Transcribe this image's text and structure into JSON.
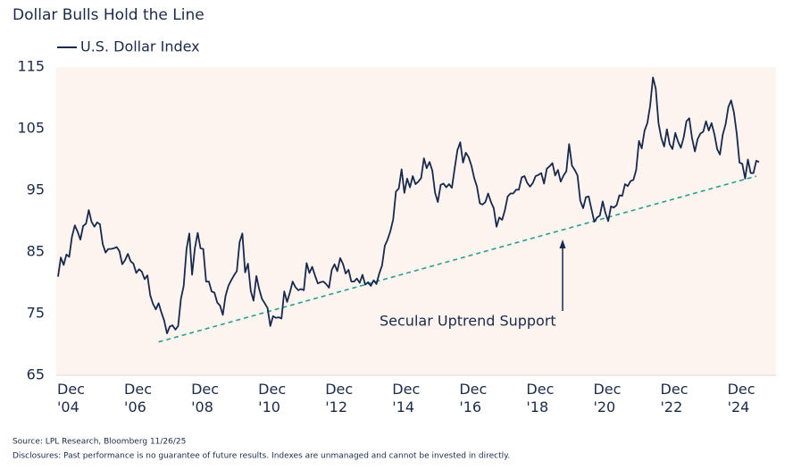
{
  "chart_data": {
    "type": "line",
    "title": "Dollar Bulls Hold the Line",
    "x": [
      "2004-12",
      "2005-01",
      "2005-02",
      "2005-03",
      "2005-04",
      "2005-05",
      "2005-06",
      "2005-07",
      "2005-08",
      "2005-09",
      "2005-10",
      "2005-11",
      "2005-12",
      "2006-01",
      "2006-02",
      "2006-03",
      "2006-04",
      "2006-05",
      "2006-06",
      "2006-07",
      "2006-08",
      "2006-09",
      "2006-10",
      "2006-11",
      "2006-12",
      "2007-01",
      "2007-02",
      "2007-03",
      "2007-04",
      "2007-05",
      "2007-06",
      "2007-07",
      "2007-08",
      "2007-09",
      "2007-10",
      "2007-11",
      "2007-12",
      "2008-01",
      "2008-02",
      "2008-03",
      "2008-04",
      "2008-05",
      "2008-06",
      "2008-07",
      "2008-08",
      "2008-09",
      "2008-10",
      "2008-11",
      "2008-12",
      "2009-01",
      "2009-02",
      "2009-03",
      "2009-04",
      "2009-05",
      "2009-06",
      "2009-07",
      "2009-08",
      "2009-09",
      "2009-10",
      "2009-11",
      "2009-12",
      "2010-01",
      "2010-02",
      "2010-03",
      "2010-04",
      "2010-05",
      "2010-06",
      "2010-07",
      "2010-08",
      "2010-09",
      "2010-10",
      "2010-11",
      "2010-12",
      "2011-01",
      "2011-02",
      "2011-03",
      "2011-04",
      "2011-05",
      "2011-06",
      "2011-07",
      "2011-08",
      "2011-09",
      "2011-10",
      "2011-11",
      "2011-12",
      "2012-01",
      "2012-02",
      "2012-03",
      "2012-04",
      "2012-05",
      "2012-06",
      "2012-07",
      "2012-08",
      "2012-09",
      "2012-10",
      "2012-11",
      "2012-12",
      "2013-01",
      "2013-02",
      "2013-03",
      "2013-04",
      "2013-05",
      "2013-06",
      "2013-07",
      "2013-08",
      "2013-09",
      "2013-10",
      "2013-11",
      "2013-12",
      "2014-01",
      "2014-02",
      "2014-03",
      "2014-04",
      "2014-05",
      "2014-06",
      "2014-07",
      "2014-08",
      "2014-09",
      "2014-10",
      "2014-11",
      "2014-12",
      "2015-01",
      "2015-02",
      "2015-03",
      "2015-04",
      "2015-05",
      "2015-06",
      "2015-07",
      "2015-08",
      "2015-09",
      "2015-10",
      "2015-11",
      "2015-12",
      "2016-01",
      "2016-02",
      "2016-03",
      "2016-04",
      "2016-05",
      "2016-06",
      "2016-07",
      "2016-08",
      "2016-09",
      "2016-10",
      "2016-11",
      "2016-12",
      "2017-01",
      "2017-02",
      "2017-03",
      "2017-04",
      "2017-05",
      "2017-06",
      "2017-07",
      "2017-08",
      "2017-09",
      "2017-10",
      "2017-11",
      "2017-12",
      "2018-01",
      "2018-02",
      "2018-03",
      "2018-04",
      "2018-05",
      "2018-06",
      "2018-07",
      "2018-08",
      "2018-09",
      "2018-10",
      "2018-11",
      "2018-12",
      "2019-01",
      "2019-02",
      "2019-03",
      "2019-04",
      "2019-05",
      "2019-06",
      "2019-07",
      "2019-08",
      "2019-09",
      "2019-10",
      "2019-11",
      "2019-12",
      "2020-01",
      "2020-02",
      "2020-03",
      "2020-04",
      "2020-05",
      "2020-06",
      "2020-07",
      "2020-08",
      "2020-09",
      "2020-10",
      "2020-11",
      "2020-12",
      "2021-01",
      "2021-02",
      "2021-03",
      "2021-04",
      "2021-05",
      "2021-06",
      "2021-07",
      "2021-08",
      "2021-09",
      "2021-10",
      "2021-11",
      "2021-12",
      "2022-01",
      "2022-02",
      "2022-03",
      "2022-04",
      "2022-05",
      "2022-06",
      "2022-07",
      "2022-08",
      "2022-09",
      "2022-10",
      "2022-11",
      "2022-12",
      "2023-01",
      "2023-02",
      "2023-03",
      "2023-04",
      "2023-05",
      "2023-06",
      "2023-07",
      "2023-08",
      "2023-09",
      "2023-10",
      "2023-11",
      "2023-12",
      "2024-01",
      "2024-02",
      "2024-03",
      "2024-04",
      "2024-05",
      "2024-06",
      "2024-07",
      "2024-08",
      "2024-09",
      "2024-10",
      "2024-11",
      "2024-12",
      "2025-01",
      "2025-02",
      "2025-03",
      "2025-04",
      "2025-05",
      "2025-06",
      "2025-07",
      "2025-08",
      "2025-09",
      "2025-10",
      "2025-11"
    ],
    "series": [
      {
        "name": "U.S. Dollar Index",
        "color": "#17294d",
        "values": [
          81,
          84.1,
          82.9,
          84.6,
          84.2,
          87.5,
          89.3,
          88.3,
          87,
          89.2,
          89.6,
          91.8,
          89.9,
          89.1,
          89.8,
          89.5,
          86.3,
          84.9,
          85.5,
          85.5,
          85.6,
          85.8,
          85.1,
          83,
          83.7,
          84.7,
          83.5,
          83.1,
          81.6,
          82.2,
          81.8,
          80.6,
          81.2,
          78,
          76.6,
          75.7,
          76.7,
          75.2,
          73.9,
          71.8,
          72.9,
          73.1,
          72.4,
          73,
          77.4,
          79.5,
          85.5,
          88,
          81.3,
          85.6,
          88.1,
          85.6,
          85.5,
          80.2,
          80.2,
          78.6,
          78.4,
          76.8,
          76.3,
          74.8,
          77.9,
          79.5,
          80.4,
          81.2,
          81.9,
          86.6,
          88,
          81.7,
          83.1,
          78.7,
          77.1,
          81.1,
          79,
          77.4,
          76.7,
          75.9,
          73,
          74.6,
          74.3,
          74.4,
          74.2,
          78.6,
          76.9,
          78.4,
          80.2,
          79.3,
          78.8,
          79,
          78.8,
          83.2,
          81.6,
          82.6,
          81.2,
          79.9,
          80.1,
          80.2,
          79.8,
          79.2,
          82.1,
          83,
          81.9,
          84,
          83.1,
          81.5,
          82.1,
          80.2,
          80.2,
          80.7,
          80,
          81.3,
          79.7,
          80.1,
          79.5,
          80.4,
          79.8,
          81.5,
          82.8,
          86,
          87,
          88.4,
          90.3,
          94.8,
          95.3,
          98.4,
          94.6,
          96.9,
          95.5,
          97.3,
          96,
          96.4,
          97,
          100.2,
          98.6,
          99.6,
          98.2,
          94.6,
          93.1,
          95.9,
          96.1,
          95.5,
          96,
          95.4,
          98.5,
          101.5,
          102.8,
          99.5,
          101.1,
          100.4,
          99,
          97,
          95.6,
          92.9,
          92.7,
          93.1,
          94.5,
          93.1,
          92.1,
          89.1,
          90.6,
          90.2,
          91.8,
          94,
          94.5,
          94.5,
          95.1,
          95.1,
          97.1,
          97.3,
          96.2,
          95.6,
          96.2,
          97.3,
          97.5,
          97.8,
          96.1,
          98.5,
          98.9,
          99.4,
          97.4,
          98.3,
          96.4,
          97.4,
          98.1,
          102.5,
          99,
          98.3,
          97.4,
          93.3,
          92.1,
          93.9,
          94,
          91.9,
          89.9,
          90.6,
          90.9,
          93.2,
          91.3,
          90,
          92.4,
          92.2,
          92.6,
          94.2,
          94.1,
          96,
          95.7,
          96.5,
          96.7,
          98.3,
          103,
          101.8,
          104.7,
          105.9,
          108.7,
          113.3,
          111.5,
          105.9,
          103.5,
          102.1,
          104.9,
          102.5,
          101.7,
          104.3,
          102.9,
          101.9,
          103.6,
          106.2,
          106.7,
          103.5,
          101.3,
          103.3,
          104.2,
          104.5,
          106.2,
          104.7,
          105.9,
          104.1,
          101.7,
          100.8,
          104,
          105.7,
          108.5,
          109.6,
          107.6,
          104.2,
          99.5,
          99.3,
          96.9,
          100,
          97.8,
          97.8,
          99.8,
          99.6
        ]
      }
    ],
    "trend_line": {
      "x": [
        "2007-12",
        "2025-10"
      ],
      "values": [
        70.4,
        97.3
      ],
      "color": "#2a9d8f"
    },
    "annotation": "Secular Uptrend Support",
    "xlim": [
      "2004-12",
      "2025-11"
    ],
    "xticks": [
      {
        "value": "2004-12",
        "label": "Dec '04"
      },
      {
        "value": "2006-12",
        "label": "Dec '06"
      },
      {
        "value": "2008-12",
        "label": "Dec '08"
      },
      {
        "value": "2010-12",
        "label": "Dec '10"
      },
      {
        "value": "2012-12",
        "label": "Dec '12"
      },
      {
        "value": "2014-12",
        "label": "Dec '14"
      },
      {
        "value": "2016-12",
        "label": "Dec '16"
      },
      {
        "value": "2018-12",
        "label": "Dec '18"
      },
      {
        "value": "2020-12",
        "label": "Dec '20"
      },
      {
        "value": "2022-12",
        "label": "Dec '22"
      },
      {
        "value": "2024-12",
        "label": "Dec '24"
      }
    ],
    "ylim": [
      65,
      115
    ],
    "yticks": [
      65,
      75,
      85,
      95,
      105,
      115
    ],
    "grid": false,
    "source": "Source: LPL Research, Bloomberg 11/26/25",
    "disclosure": "Disclosures: Past performance is no guarantee of future results. Indexes are unmanaged and cannot be invested in directly."
  }
}
